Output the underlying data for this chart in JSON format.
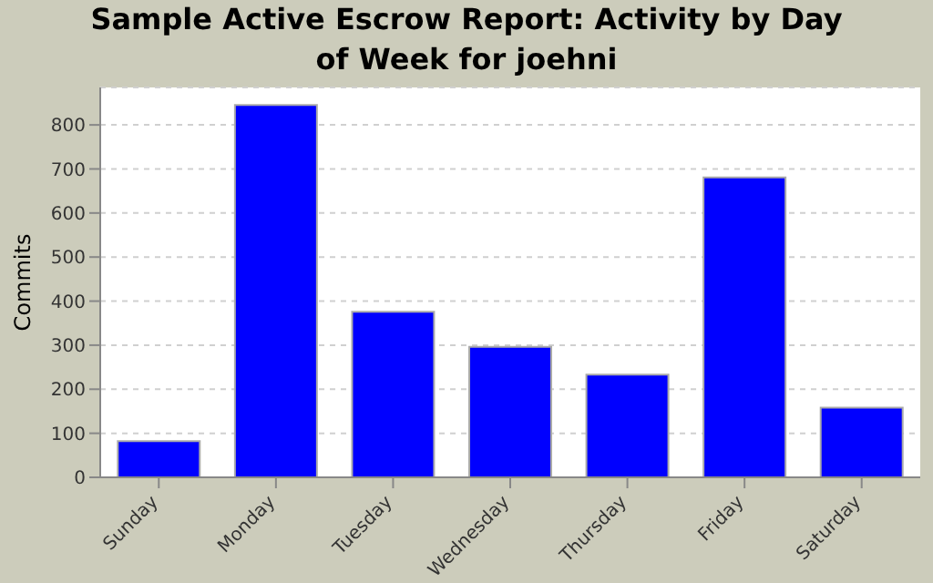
{
  "chart_data": {
    "type": "bar",
    "title": "Sample Active Escrow Report: Activity by Day of Week for joehni",
    "ylabel": "Commits",
    "categories": [
      "Sunday",
      "Monday",
      "Tuesday",
      "Wednesday",
      "Thursday",
      "Friday",
      "Saturday"
    ],
    "values": [
      82,
      845,
      376,
      296,
      233,
      681,
      158
    ],
    "color": "#0000ff",
    "ylim": [
      0,
      885
    ],
    "yticks": [
      0,
      100,
      200,
      300,
      400,
      500,
      600,
      700,
      800
    ],
    "grid": "y"
  }
}
